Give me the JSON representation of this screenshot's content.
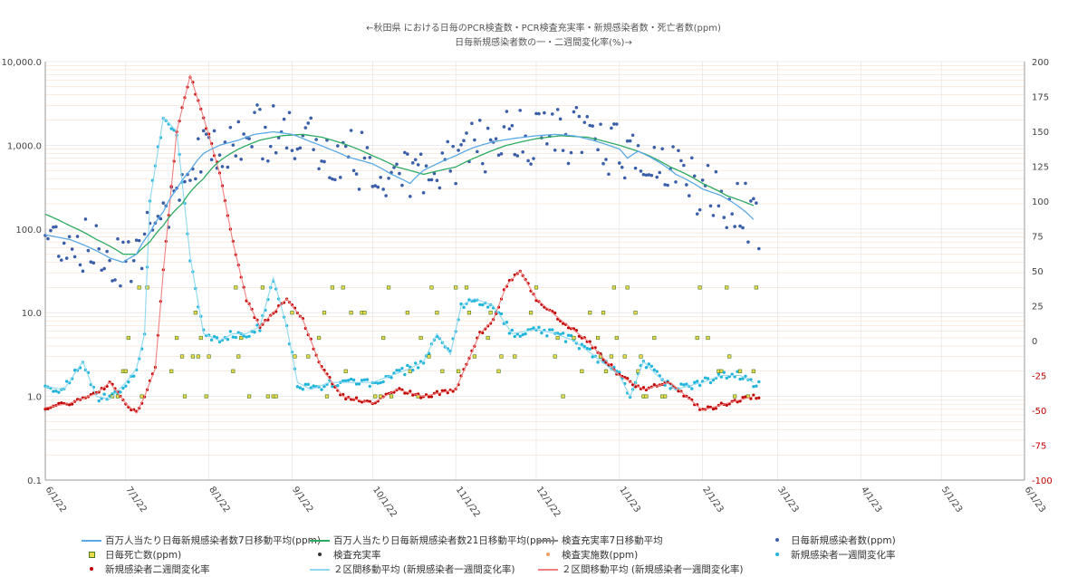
{
  "title": {
    "line1": "←秋田県 における日毎のPCR検査数・PCR検査充実率・新規感染者数・死亡者数(ppm)",
    "line2": "日毎新規感染者数の一・二週間変化率(%)→"
  },
  "colors": {
    "ma7": "#5aa9e6",
    "ma21": "#2eaa60",
    "rate7": "#888888",
    "cases": "#3a5fa8",
    "deaths_fill": "#e8d84a",
    "deaths_stroke": "#4a7a20",
    "rate_pts": "#333333",
    "tests": "#f0a060",
    "chg1w": "#21b5dc",
    "chg2w": "#c00000",
    "ma2_1w": "#8fd8ef",
    "ma2_2w": "#f08080",
    "gridH": "#f0c8a8",
    "gridV": "#e0e0e0",
    "right_neg": "#c00000"
  },
  "chart_data": {
    "type": "scatter",
    "x_axis": {
      "ticks": [
        "6/1/22",
        "7/1/22",
        "8/1/22",
        "9/1/22",
        "10/1/22",
        "11/1/22",
        "12/1/22",
        "1/1/23",
        "2/1/23",
        "3/1/23",
        "4/1/23",
        "5/1/23",
        "6/1/23"
      ],
      "range": [
        "2022-06-01",
        "2023-06-01"
      ]
    },
    "y_left": {
      "scale": "log",
      "range": [
        0.1,
        10000
      ],
      "ticks": [
        "0.1",
        "1.0",
        "10.0",
        "100.0",
        "1,000.0",
        "10,000.0"
      ]
    },
    "y_right": {
      "scale": "linear",
      "range": [
        -100,
        200
      ],
      "ticks": [
        "200",
        "175",
        "150",
        "125",
        "100",
        "75",
        "50",
        "25",
        "0",
        "-25",
        "-50",
        "-75",
        "-100"
      ]
    },
    "legend": [
      "百万人当たり日毎新規感染者数7日移動平均(ppm)",
      "百万人当たり日毎新規感染者数21日移動平均(ppm)",
      "検査充実率7日移動平均",
      "日毎新規感染者数(ppm)",
      "日毎死亡数(ppm)",
      "検査充実率",
      "検査実施数(ppm)",
      "新規感染者一週間変化率",
      "新規感染者二週間変化率",
      "２区間移動平均 (新規感染者一週間変化率)",
      "２区間移動平均 (新規感染者一週間変化率)"
    ],
    "series": [
      {
        "name": "百万人当たり日毎新規感染者数7日移動平均(ppm)",
        "axis": "left",
        "x": [
          "2022-06-01",
          "2022-06-10",
          "2022-06-20",
          "2022-06-25",
          "2022-06-30",
          "2022-07-05",
          "2022-07-10",
          "2022-07-15",
          "2022-07-20",
          "2022-07-25",
          "2022-07-30",
          "2022-08-05",
          "2022-08-12",
          "2022-08-18",
          "2022-08-25",
          "2022-09-01",
          "2022-09-08",
          "2022-09-15",
          "2022-09-22",
          "2022-10-01",
          "2022-10-08",
          "2022-10-15",
          "2022-10-20",
          "2022-10-25",
          "2022-11-01",
          "2022-11-08",
          "2022-11-15",
          "2022-11-22",
          "2022-12-01",
          "2022-12-08",
          "2022-12-15",
          "2022-12-22",
          "2023-01-01",
          "2023-01-04",
          "2023-01-08",
          "2023-01-15",
          "2023-01-22",
          "2023-02-01",
          "2023-02-08",
          "2023-02-15",
          "2023-02-20"
        ],
        "values": [
          85,
          75,
          55,
          45,
          40,
          50,
          90,
          160,
          300,
          500,
          800,
          1000,
          1150,
          1350,
          1450,
          1350,
          1100,
          900,
          720,
          600,
          450,
          350,
          500,
          600,
          750,
          950,
          1100,
          1200,
          1300,
          1350,
          1300,
          1150,
          900,
          700,
          850,
          650,
          450,
          300,
          250,
          180,
          130
        ]
      },
      {
        "name": "百万人当たり日毎新規感染者数21日移動平均(ppm)",
        "axis": "left",
        "x": [
          "2022-06-01",
          "2022-06-10",
          "2022-06-20",
          "2022-06-30",
          "2022-07-05",
          "2022-07-10",
          "2022-07-15",
          "2022-07-22",
          "2022-07-30",
          "2022-08-05",
          "2022-08-12",
          "2022-08-20",
          "2022-08-28",
          "2022-09-05",
          "2022-09-12",
          "2022-09-20",
          "2022-10-01",
          "2022-10-10",
          "2022-10-20",
          "2022-11-01",
          "2022-11-10",
          "2022-11-20",
          "2022-12-01",
          "2022-12-10",
          "2022-12-20",
          "2023-01-01",
          "2023-01-10",
          "2023-01-20",
          "2023-02-01",
          "2023-02-10",
          "2023-02-20"
        ],
        "values": [
          150,
          110,
          75,
          50,
          50,
          70,
          110,
          200,
          400,
          650,
          900,
          1150,
          1300,
          1350,
          1250,
          1050,
          750,
          550,
          450,
          550,
          750,
          1000,
          1200,
          1300,
          1250,
          1000,
          800,
          550,
          350,
          250,
          190
        ]
      },
      {
        "name": "新規感染者一週間変化率",
        "axis": "right",
        "x": [
          "2022-06-01",
          "2022-06-08",
          "2022-06-15",
          "2022-06-20",
          "2022-06-25",
          "2022-07-01",
          "2022-07-05",
          "2022-07-08",
          "2022-07-10",
          "2022-07-15",
          "2022-07-20",
          "2022-07-25",
          "2022-07-30",
          "2022-08-05",
          "2022-08-10",
          "2022-08-15",
          "2022-08-20",
          "2022-08-25",
          "2022-08-30",
          "2022-09-03",
          "2022-09-08",
          "2022-09-15",
          "2022-09-22",
          "2022-10-01",
          "2022-10-08",
          "2022-10-15",
          "2022-10-20",
          "2022-10-25",
          "2022-10-30",
          "2022-11-03",
          "2022-11-08",
          "2022-11-15",
          "2022-11-22",
          "2022-12-01",
          "2022-12-08",
          "2022-12-15",
          "2022-12-22",
          "2023-01-01",
          "2023-01-05",
          "2023-01-10",
          "2023-01-15",
          "2023-01-22",
          "2023-02-01",
          "2023-02-08",
          "2023-02-15",
          "2023-02-20"
        ],
        "values": [
          -33,
          -35,
          -15,
          -40,
          -42,
          -30,
          -20,
          5,
          100,
          160,
          150,
          60,
          5,
          0,
          5,
          5,
          10,
          45,
          10,
          -30,
          -35,
          -30,
          -30,
          -30,
          -25,
          -20,
          -15,
          5,
          -10,
          25,
          30,
          25,
          5,
          8,
          5,
          0,
          -10,
          -25,
          -40,
          -15,
          -25,
          -35,
          -30,
          -25,
          -25,
          -30
        ]
      },
      {
        "name": "新規感染者二週間変化率",
        "axis": "right",
        "x": [
          "2022-06-01",
          "2022-06-10",
          "2022-06-20",
          "2022-06-25",
          "2022-07-01",
          "2022-07-05",
          "2022-07-08",
          "2022-07-12",
          "2022-07-15",
          "2022-07-20",
          "2022-07-25",
          "2022-07-30",
          "2022-08-05",
          "2022-08-10",
          "2022-08-15",
          "2022-08-20",
          "2022-08-25",
          "2022-08-30",
          "2022-09-05",
          "2022-09-12",
          "2022-09-20",
          "2022-10-01",
          "2022-10-10",
          "2022-10-20",
          "2022-11-01",
          "2022-11-10",
          "2022-11-15",
          "2022-11-20",
          "2022-11-25",
          "2022-12-01",
          "2022-12-10",
          "2022-12-20",
          "2023-01-01",
          "2023-01-10",
          "2023-01-20",
          "2023-02-01",
          "2023-02-10",
          "2023-02-20"
        ],
        "values": [
          -48,
          -45,
          -38,
          -30,
          -45,
          -52,
          -40,
          -20,
          50,
          150,
          190,
          160,
          120,
          70,
          30,
          10,
          20,
          30,
          15,
          -20,
          -40,
          -45,
          -35,
          -40,
          -35,
          5,
          15,
          40,
          50,
          30,
          15,
          0,
          -25,
          -35,
          -30,
          -50,
          -45,
          -40
        ]
      }
    ]
  },
  "legend_labels": [
    "百万人当たり日毎新規感染者数7日移動平均(ppm)",
    "百万人当たり日毎新規感染者数21日移動平均(ppm)",
    "検査充実率7日移動平均",
    "日毎新規感染者数(ppm)",
    "日毎死亡数(ppm)",
    "検査充実率",
    "検査実施数(ppm)",
    "新規感染者一週間変化率",
    "新規感染者二週間変化率",
    "２区間移動平均 (新規感染者一週間変化率)",
    "２区間移動平均 (新規感染者一週間変化率)"
  ]
}
